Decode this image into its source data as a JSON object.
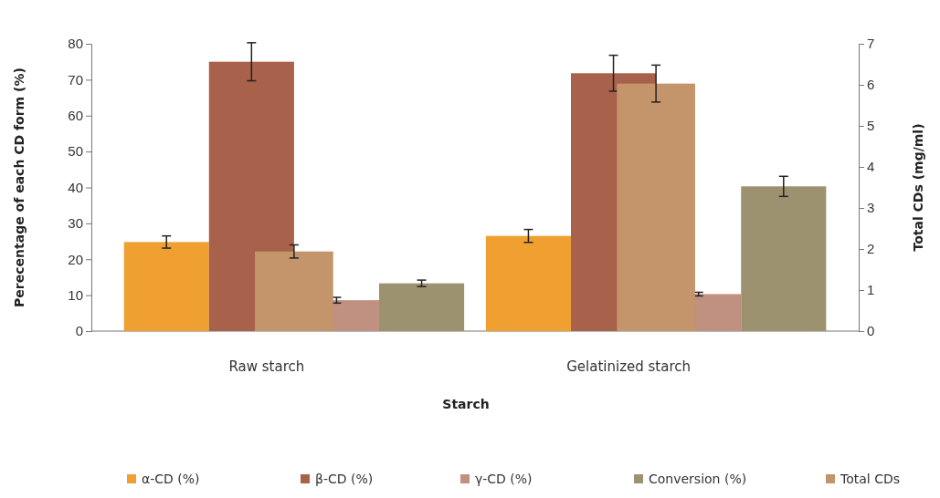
{
  "chart_data": {
    "type": "bar",
    "xlabel": "Starch",
    "ylabel": "Perecentage  of each CD form (%)",
    "y2label": "Total CDs (mg/ml)",
    "categories": [
      "Raw starch",
      "Gelatinized starch"
    ],
    "series": [
      {
        "name": "α-CD (%)",
        "color": "#f0a030",
        "values": [
          24.8,
          26.5
        ],
        "errors": [
          1.7,
          1.8
        ]
      },
      {
        "name": "β-CD  (%)",
        "color": "#a8614a",
        "values": [
          75.0,
          71.8
        ],
        "errors": [
          5.3,
          5.0
        ]
      },
      {
        "name": "γ-CD  (%)",
        "color": "#c09080",
        "values": [
          8.6,
          10.3
        ],
        "errors": [
          0.8,
          0.5
        ]
      },
      {
        "name": "Conversion (%)",
        "color": "#9c9270",
        "values": [
          13.3,
          40.3
        ],
        "errors": [
          0.9,
          2.8
        ]
      },
      {
        "name": "Total CDs",
        "color": "#c4946a",
        "values": [
          1.94,
          6.03
        ],
        "errors": [
          0.16,
          0.45
        ],
        "axis": "y2"
      }
    ],
    "ylim": [
      0,
      80
    ],
    "yticks": [
      0,
      10,
      20,
      30,
      40,
      50,
      60,
      70,
      80
    ],
    "y2lim": [
      0,
      7
    ],
    "y2ticks": [
      0,
      1,
      2,
      3,
      4,
      5,
      6,
      7
    ],
    "grid": false,
    "legend": "bottom"
  }
}
